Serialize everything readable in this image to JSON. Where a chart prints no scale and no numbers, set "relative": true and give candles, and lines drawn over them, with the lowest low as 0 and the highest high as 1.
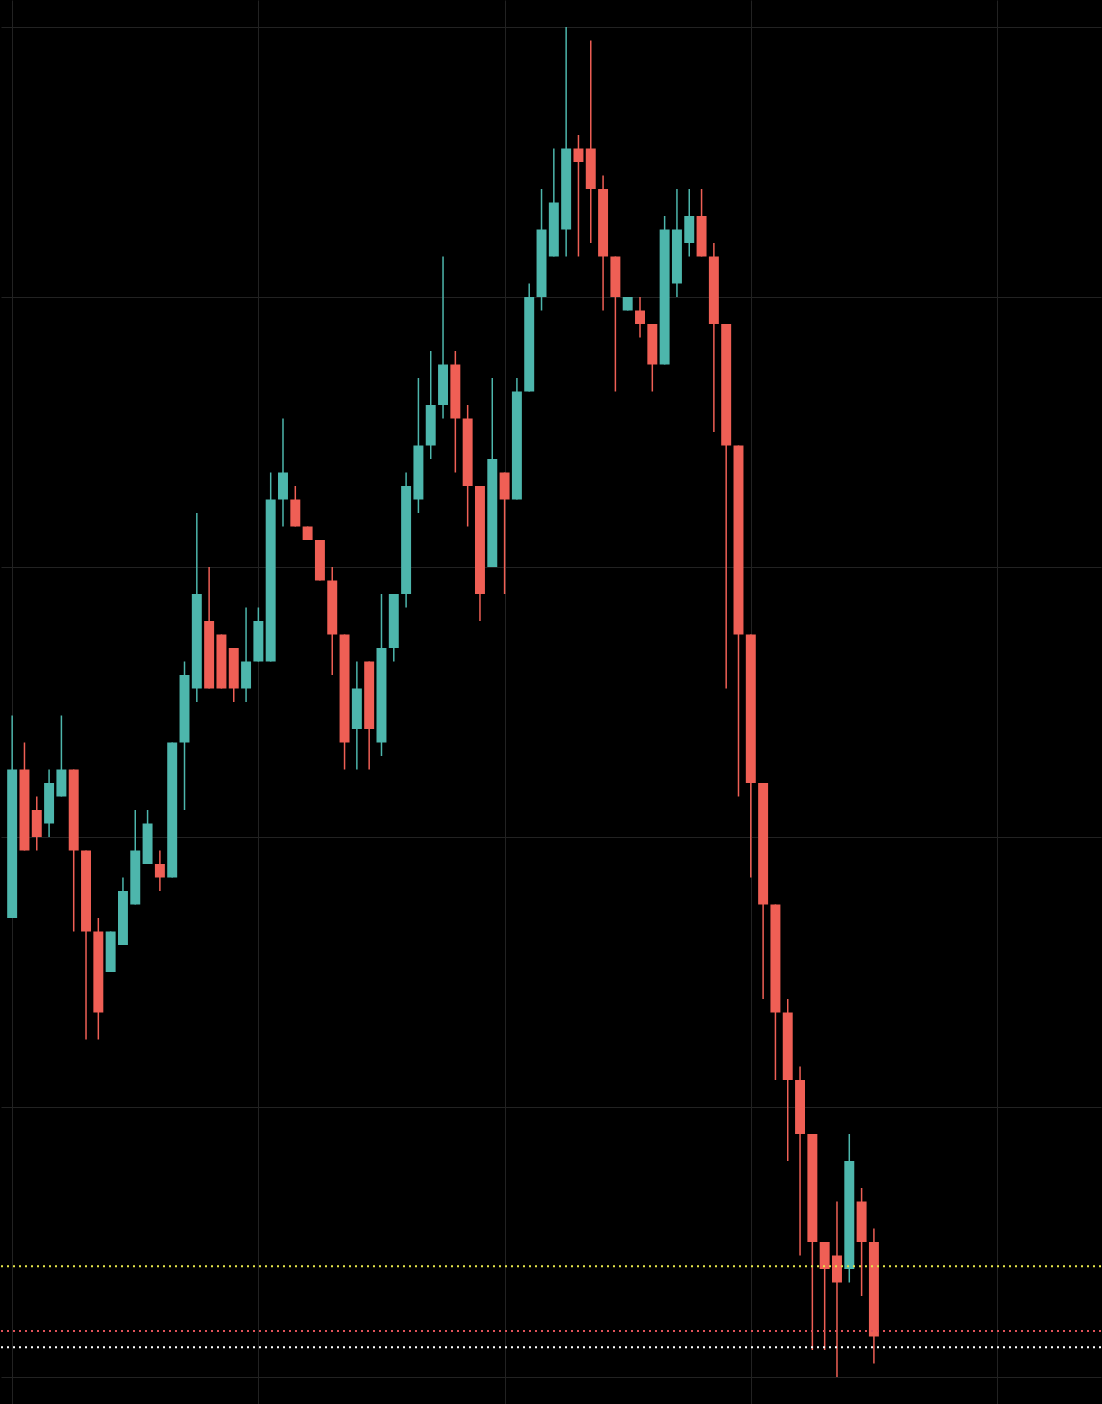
{
  "chart_data": {
    "type": "candlestick",
    "relative": true,
    "grid": true,
    "categories": [
      null,
      null,
      null,
      null,
      null,
      null,
      null,
      null,
      null,
      null,
      null,
      null,
      null,
      null,
      null,
      null,
      null,
      null,
      null,
      null,
      null,
      null,
      null,
      null,
      null,
      null,
      null,
      null,
      null,
      null,
      null,
      null,
      null,
      null,
      null,
      null,
      null,
      null,
      null,
      null,
      null,
      null,
      null,
      null,
      null,
      null,
      null,
      null,
      null,
      null,
      null,
      null,
      null,
      null,
      null,
      null,
      null,
      null,
      null,
      null,
      null,
      null,
      null,
      null,
      null,
      null,
      null,
      null,
      null,
      null,
      null
    ],
    "series": [
      {
        "colors": [
          "#4db6ac",
          "#ef5f55",
          "#ef5f55",
          "#4db6ac",
          "#4db6ac",
          "#ef5f55",
          "#ef5f55",
          "#ef5f55",
          "#4db6ac",
          "#4db6ac",
          "#4db6ac",
          "#4db6ac",
          "#ef5f55",
          "#4db6ac",
          "#4db6ac",
          "#4db6ac",
          "#ef5f55",
          "#ef5f55",
          "#ef5f55",
          "#4db6ac",
          "#4db6ac",
          "#4db6ac",
          "#4db6ac",
          "#ef5f55",
          "#ef5f55",
          "#ef5f55",
          "#ef5f55",
          "#ef5f55",
          "#4db6ac",
          "#ef5f55",
          "#4db6ac",
          "#4db6ac",
          "#4db6ac",
          "#4db6ac",
          "#4db6ac",
          "#4db6ac",
          "#ef5f55",
          "#ef5f55",
          "#ef5f55",
          "#4db6ac",
          "#ef5f55",
          "#4db6ac",
          "#4db6ac",
          "#4db6ac",
          "#4db6ac",
          "#4db6ac",
          "#ef5f55",
          "#ef5f55",
          "#ef5f55",
          "#ef5f55",
          "#4db6ac",
          "#ef5f55",
          "#ef5f55",
          "#4db6ac",
          "#4db6ac",
          "#4db6ac",
          "#ef5f55",
          "#ef5f55",
          "#ef5f55",
          "#ef5f55",
          "#ef5f55",
          "#ef5f55",
          "#ef5f55",
          "#ef5f55",
          "#ef5f55",
          "#ef5f55",
          "#ef5f55",
          "#ef5f55",
          "#4db6ac",
          "#ef5f55",
          "#ef5f55"
        ],
        "ohlc": [
          [
            0.34,
            0.49,
            0.34,
            0.45
          ],
          [
            0.45,
            0.47,
            0.39,
            0.39
          ],
          [
            0.42,
            0.43,
            0.39,
            0.4
          ],
          [
            0.41,
            0.45,
            0.4,
            0.44
          ],
          [
            0.43,
            0.49,
            0.43,
            0.45
          ],
          [
            0.45,
            0.45,
            0.33,
            0.39
          ],
          [
            0.39,
            0.39,
            0.25,
            0.33
          ],
          [
            0.33,
            0.34,
            0.25,
            0.27
          ],
          [
            0.3,
            0.33,
            0.3,
            0.33
          ],
          [
            0.32,
            0.37,
            0.32,
            0.36
          ],
          [
            0.35,
            0.42,
            0.35,
            0.39
          ],
          [
            0.38,
            0.42,
            0.38,
            0.41
          ],
          [
            0.38,
            0.39,
            0.36,
            0.37
          ],
          [
            0.37,
            0.47,
            0.37,
            0.47
          ],
          [
            0.47,
            0.53,
            0.42,
            0.52
          ],
          [
            0.51,
            0.64,
            0.5,
            0.58
          ],
          [
            0.56,
            0.6,
            0.51,
            0.51
          ],
          [
            0.55,
            0.55,
            0.51,
            0.51
          ],
          [
            0.54,
            0.54,
            0.5,
            0.51
          ],
          [
            0.51,
            0.57,
            0.5,
            0.53
          ],
          [
            0.53,
            0.57,
            0.53,
            0.56
          ],
          [
            0.53,
            0.67,
            0.53,
            0.65
          ],
          [
            0.65,
            0.71,
            0.63,
            0.67
          ],
          [
            0.65,
            0.66,
            0.63,
            0.63
          ],
          [
            0.63,
            0.63,
            0.62,
            0.62
          ],
          [
            0.62,
            0.62,
            0.59,
            0.59
          ],
          [
            0.59,
            0.6,
            0.52,
            0.55
          ],
          [
            0.55,
            0.55,
            0.45,
            0.47
          ],
          [
            0.48,
            0.53,
            0.45,
            0.51
          ],
          [
            0.53,
            0.53,
            0.45,
            0.48
          ],
          [
            0.47,
            0.58,
            0.46,
            0.54
          ],
          [
            0.54,
            0.58,
            0.53,
            0.58
          ],
          [
            0.58,
            0.67,
            0.57,
            0.66
          ],
          [
            0.65,
            0.74,
            0.64,
            0.69
          ],
          [
            0.69,
            0.76,
            0.68,
            0.72
          ],
          [
            0.72,
            0.83,
            0.71,
            0.75
          ],
          [
            0.75,
            0.76,
            0.67,
            0.71
          ],
          [
            0.71,
            0.72,
            0.63,
            0.66
          ],
          [
            0.66,
            0.66,
            0.56,
            0.58
          ],
          [
            0.6,
            0.74,
            0.6,
            0.68
          ],
          [
            0.67,
            0.67,
            0.58,
            0.65
          ],
          [
            0.65,
            0.74,
            0.65,
            0.73
          ],
          [
            0.73,
            0.81,
            0.73,
            0.8
          ],
          [
            0.8,
            0.88,
            0.79,
            0.85
          ],
          [
            0.83,
            0.91,
            0.83,
            0.87
          ],
          [
            0.85,
            1.0,
            0.83,
            0.91
          ],
          [
            0.91,
            0.92,
            0.83,
            0.9
          ],
          [
            0.91,
            0.99,
            0.84,
            0.88
          ],
          [
            0.88,
            0.89,
            0.79,
            0.83
          ],
          [
            0.83,
            0.83,
            0.73,
            0.8
          ],
          [
            0.79,
            0.8,
            0.79,
            0.8
          ],
          [
            0.79,
            0.8,
            0.77,
            0.78
          ],
          [
            0.78,
            0.78,
            0.73,
            0.75
          ],
          [
            0.75,
            0.86,
            0.75,
            0.85
          ],
          [
            0.81,
            0.88,
            0.8,
            0.85
          ],
          [
            0.84,
            0.88,
            0.83,
            0.86
          ],
          [
            0.86,
            0.88,
            0.83,
            0.83
          ],
          [
            0.83,
            0.84,
            0.7,
            0.78
          ],
          [
            0.78,
            0.78,
            0.51,
            0.69
          ],
          [
            0.69,
            0.69,
            0.43,
            0.55
          ],
          [
            0.55,
            0.55,
            0.37,
            0.44
          ],
          [
            0.44,
            0.44,
            0.28,
            0.35
          ],
          [
            0.35,
            0.35,
            0.22,
            0.27
          ],
          [
            0.27,
            0.28,
            0.16,
            0.22
          ],
          [
            0.22,
            0.23,
            0.09,
            0.18
          ],
          [
            0.18,
            0.18,
            0.02,
            0.1
          ],
          [
            0.1,
            0.1,
            0.02,
            0.08
          ],
          [
            0.09,
            0.13,
            0,
            0.07
          ],
          [
            0.08,
            0.18,
            0.07,
            0.16
          ],
          [
            0.13,
            0.14,
            0.06,
            0.1
          ],
          [
            0.1,
            0.11,
            0.01,
            0.03
          ]
        ]
      }
    ],
    "ref_lines": [
      {
        "axis": "y",
        "value": 0.082,
        "color": "#e8e84a",
        "line_style": "dotted"
      },
      {
        "axis": "y",
        "value": 0.034,
        "color": "#e0525a",
        "line_style": "dotted"
      },
      {
        "axis": "y",
        "value": 0.022,
        "color": "#ffffff",
        "line_style": "dotted"
      }
    ]
  }
}
